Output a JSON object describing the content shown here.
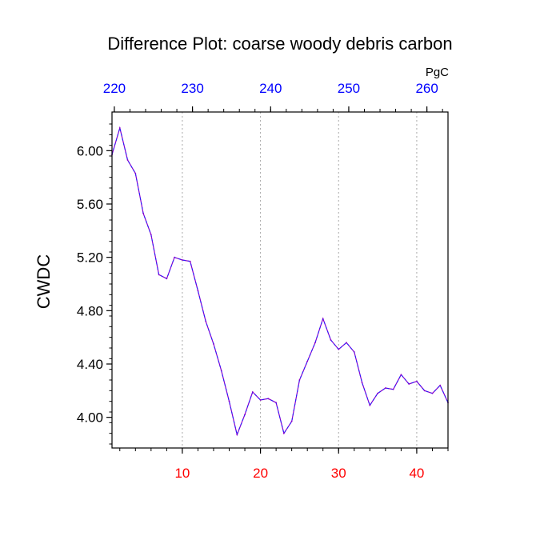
{
  "chart_data": {
    "type": "line",
    "title": "Difference Plot: coarse woody debris carbon",
    "xlabel": "",
    "ylabel": "CWDC",
    "top_axis_units": "PgC",
    "xlim": [
      1,
      44
    ],
    "ylim": [
      3.77,
      6.29
    ],
    "x_ticks": [
      10,
      20,
      30,
      40
    ],
    "x_tick_labels": [
      "10",
      "20",
      "30",
      "40"
    ],
    "y_ticks": [
      4.0,
      4.4,
      4.8,
      5.2,
      5.6,
      6.0
    ],
    "y_tick_labels": [
      "4.00",
      "4.40",
      "4.80",
      "5.20",
      "5.60",
      "6.00"
    ],
    "top_ticks": [
      220,
      230,
      240,
      250,
      260
    ],
    "top_tick_labels": [
      "220",
      "230",
      "240",
      "250",
      "260"
    ],
    "top_axis_range": [
      219.7,
      262.7
    ],
    "grid": "vertical-dotted",
    "colors": {
      "series_line": "#8800cc",
      "series_dash": "#2020ff",
      "bottom_ticks": "#ff0000",
      "top_ticks": "#0000ff",
      "grid": "#aaaaaa"
    },
    "series": [
      {
        "x": [
          1,
          2,
          3,
          4,
          5,
          6,
          7,
          8,
          9,
          10,
          11,
          12,
          13,
          14,
          15,
          16,
          17,
          18,
          19,
          20,
          21,
          22,
          23,
          24,
          25,
          26,
          27,
          28,
          29,
          30,
          31,
          32,
          33,
          34,
          35,
          36,
          37,
          38,
          39,
          40,
          41,
          42,
          43,
          44
        ],
        "values": [
          5.97,
          6.17,
          5.93,
          5.83,
          5.53,
          5.37,
          5.07,
          5.04,
          5.2,
          5.18,
          5.17,
          4.95,
          4.72,
          4.55,
          4.35,
          4.12,
          3.87,
          4.02,
          4.19,
          4.13,
          4.14,
          4.11,
          3.88,
          3.97,
          4.28,
          4.42,
          4.56,
          4.74,
          4.58,
          4.51,
          4.56,
          4.49,
          4.26,
          4.09,
          4.18,
          4.22,
          4.21,
          4.32,
          4.25,
          4.27,
          4.2,
          4.18,
          4.24,
          4.11
        ]
      }
    ]
  }
}
